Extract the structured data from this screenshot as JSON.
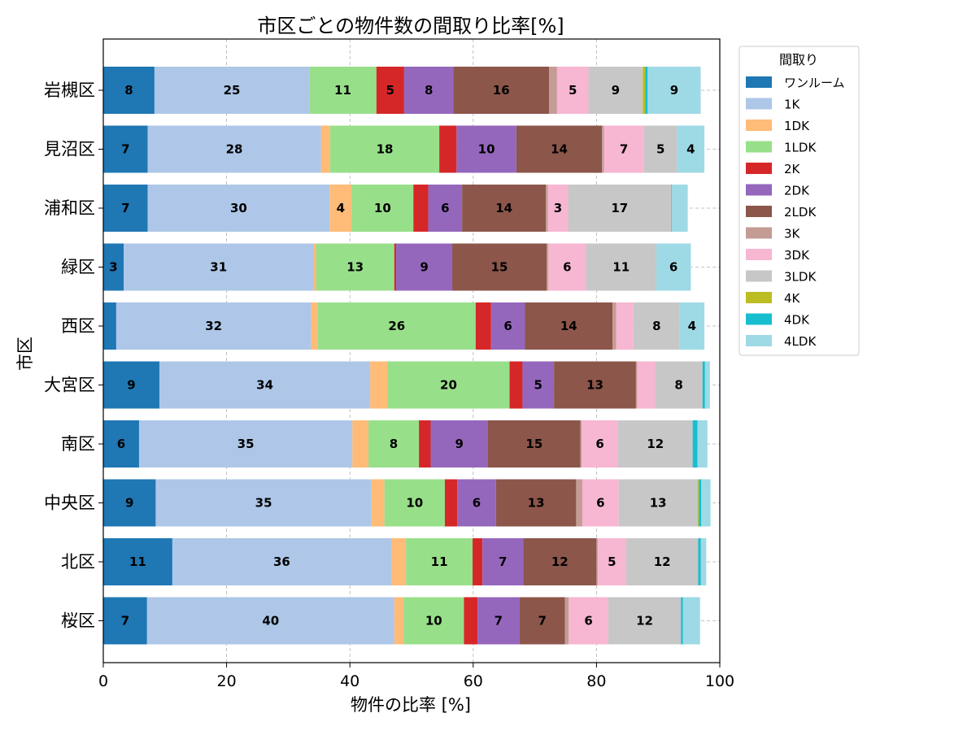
{
  "chart_data": {
    "type": "bar",
    "orientation": "horizontal",
    "stacked": true,
    "title": "市区ごとの物件数の間取り比率[%]",
    "xlabel": "物件の比率 [%]",
    "ylabel": "市区",
    "xlim": [
      0,
      100
    ],
    "x_ticks": [
      0,
      20,
      40,
      60,
      80,
      100
    ],
    "grid": true,
    "label_min_value": 3,
    "legend": {
      "title": "間取り",
      "placement": "outside-upper-right"
    },
    "categories": [
      "岩槻区",
      "見沼区",
      "浦和区",
      "緑区",
      "西区",
      "大宮区",
      "南区",
      "中央区",
      "北区",
      "桜区"
    ],
    "series": [
      {
        "name": "ワンルーム",
        "color": "#1f77b4",
        "values": [
          8.3,
          7.2,
          7.2,
          3.3,
          2.1,
          9.1,
          5.8,
          8.5,
          11.2,
          7.1
        ]
      },
      {
        "name": "1K",
        "color": "#aec7e8",
        "values": [
          25.1,
          28.1,
          29.5,
          30.8,
          31.6,
          34.2,
          34.6,
          35.0,
          35.5,
          40.1
        ]
      },
      {
        "name": "1DK",
        "color": "#ffbb78",
        "values": [
          0.0,
          1.5,
          3.6,
          0.4,
          1.1,
          2.8,
          2.6,
          2.1,
          2.4,
          1.5
        ]
      },
      {
        "name": "1LDK",
        "color": "#98df8a",
        "values": [
          10.9,
          17.7,
          10.0,
          12.7,
          25.6,
          19.8,
          8.2,
          9.8,
          10.8,
          9.8
        ]
      },
      {
        "name": "2K",
        "color": "#d62728",
        "values": [
          4.5,
          2.8,
          2.4,
          0.3,
          2.5,
          2.1,
          1.9,
          2.0,
          1.6,
          2.2
        ]
      },
      {
        "name": "2DK",
        "color": "#9467bd",
        "values": [
          8.0,
          9.7,
          5.5,
          9.1,
          5.5,
          5.1,
          9.3,
          6.3,
          6.6,
          6.8
        ]
      },
      {
        "name": "2LDK",
        "color": "#8c564b",
        "values": [
          15.5,
          13.9,
          13.6,
          15.3,
          14.2,
          13.3,
          15.0,
          13.0,
          11.9,
          7.4
        ]
      },
      {
        "name": "3K",
        "color": "#c49c94",
        "values": [
          1.3,
          0.3,
          0.3,
          0.3,
          0.6,
          0.2,
          0.2,
          1.0,
          0.2,
          0.6
        ]
      },
      {
        "name": "3DK",
        "color": "#f7b6d2",
        "values": [
          5.1,
          6.5,
          3.3,
          6.1,
          2.8,
          2.9,
          5.9,
          5.9,
          4.6,
          6.4
        ]
      },
      {
        "name": "3LDK",
        "color": "#c7c7c7",
        "values": [
          8.8,
          5.4,
          16.7,
          11.4,
          7.5,
          7.7,
          12.1,
          12.8,
          11.7,
          11.8
        ]
      },
      {
        "name": "4K",
        "color": "#bcbd22",
        "values": [
          0.4,
          0.0,
          0.0,
          0.0,
          0.0,
          0.0,
          0.0,
          0.2,
          0.0,
          0.0
        ]
      },
      {
        "name": "4DK",
        "color": "#17becf",
        "values": [
          0.4,
          0.0,
          0.1,
          0.0,
          0.0,
          0.4,
          0.8,
          0.4,
          0.4,
          0.3
        ]
      },
      {
        "name": "4LDK",
        "color": "#9edae5",
        "values": [
          8.6,
          4.4,
          2.6,
          5.6,
          4.0,
          0.8,
          1.6,
          1.5,
          0.9,
          2.8
        ]
      }
    ]
  }
}
